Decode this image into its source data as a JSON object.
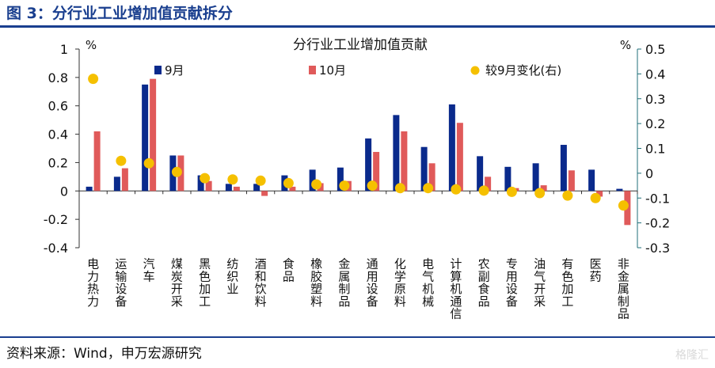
{
  "header": {
    "figure_title": "图 3：分行业工业增加值贡献拆分"
  },
  "footer": {
    "source": "资料来源：Wind，申万宏源研究",
    "watermark": "格隆汇"
  },
  "colors": {
    "sep": "#0a2a8c",
    "oct": "#e05a5a",
    "change": "#f5c000",
    "axis_right": "#1f6f78",
    "brand": "#1a3f8f"
  },
  "chart_data": {
    "type": "bar",
    "title": "分行业工业增加值贡献",
    "ylabel_left": "%",
    "ylabel_right": "%",
    "ylim_left": [
      -0.4,
      1.0
    ],
    "ylim_right": [
      -0.3,
      0.5
    ],
    "yticks_left": [
      "1",
      "0.8",
      "0.6",
      "0.4",
      "0.2",
      "0",
      "-0.2",
      "-0.4"
    ],
    "yticks_right": [
      "0.5",
      "0.4",
      "0.3",
      "0.2",
      "0.1",
      "0",
      "-0.1",
      "-0.2",
      "-0.3"
    ],
    "categories": [
      "电力热力",
      "运输设备",
      "汽车",
      "煤炭开采",
      "黑色加工",
      "纺织业",
      "酒和饮料",
      "食品",
      "橡胶塑料",
      "金属制品",
      "通用设备",
      "化学原料",
      "电气机械",
      "计算机通信",
      "农副食品",
      "专用设备",
      "油气开采",
      "有色加工",
      "医药",
      "非金属制品"
    ],
    "series": [
      {
        "name": "9月",
        "axis": "left",
        "values": [
          0.03,
          0.1,
          0.75,
          0.25,
          0.11,
          0.05,
          0.05,
          0.11,
          0.15,
          0.165,
          0.37,
          0.535,
          0.31,
          0.61,
          0.245,
          0.17,
          0.195,
          0.325,
          0.15,
          0.015
        ]
      },
      {
        "name": "10月",
        "axis": "left",
        "values": [
          0.42,
          0.16,
          0.79,
          0.25,
          0.07,
          0.03,
          -0.035,
          0.03,
          0.055,
          0.07,
          0.275,
          0.42,
          0.195,
          0.48,
          0.1,
          0.02,
          0.04,
          0.145,
          -0.04,
          -0.24
        ]
      },
      {
        "name": "较9月变化(右)",
        "axis": "right",
        "type": "scatter",
        "values": [
          0.38,
          0.05,
          0.04,
          0.005,
          -0.02,
          -0.025,
          -0.03,
          -0.04,
          -0.045,
          -0.05,
          -0.05,
          -0.06,
          -0.06,
          -0.065,
          -0.07,
          -0.075,
          -0.08,
          -0.09,
          -0.1,
          -0.13
        ]
      }
    ],
    "legend": "top"
  }
}
